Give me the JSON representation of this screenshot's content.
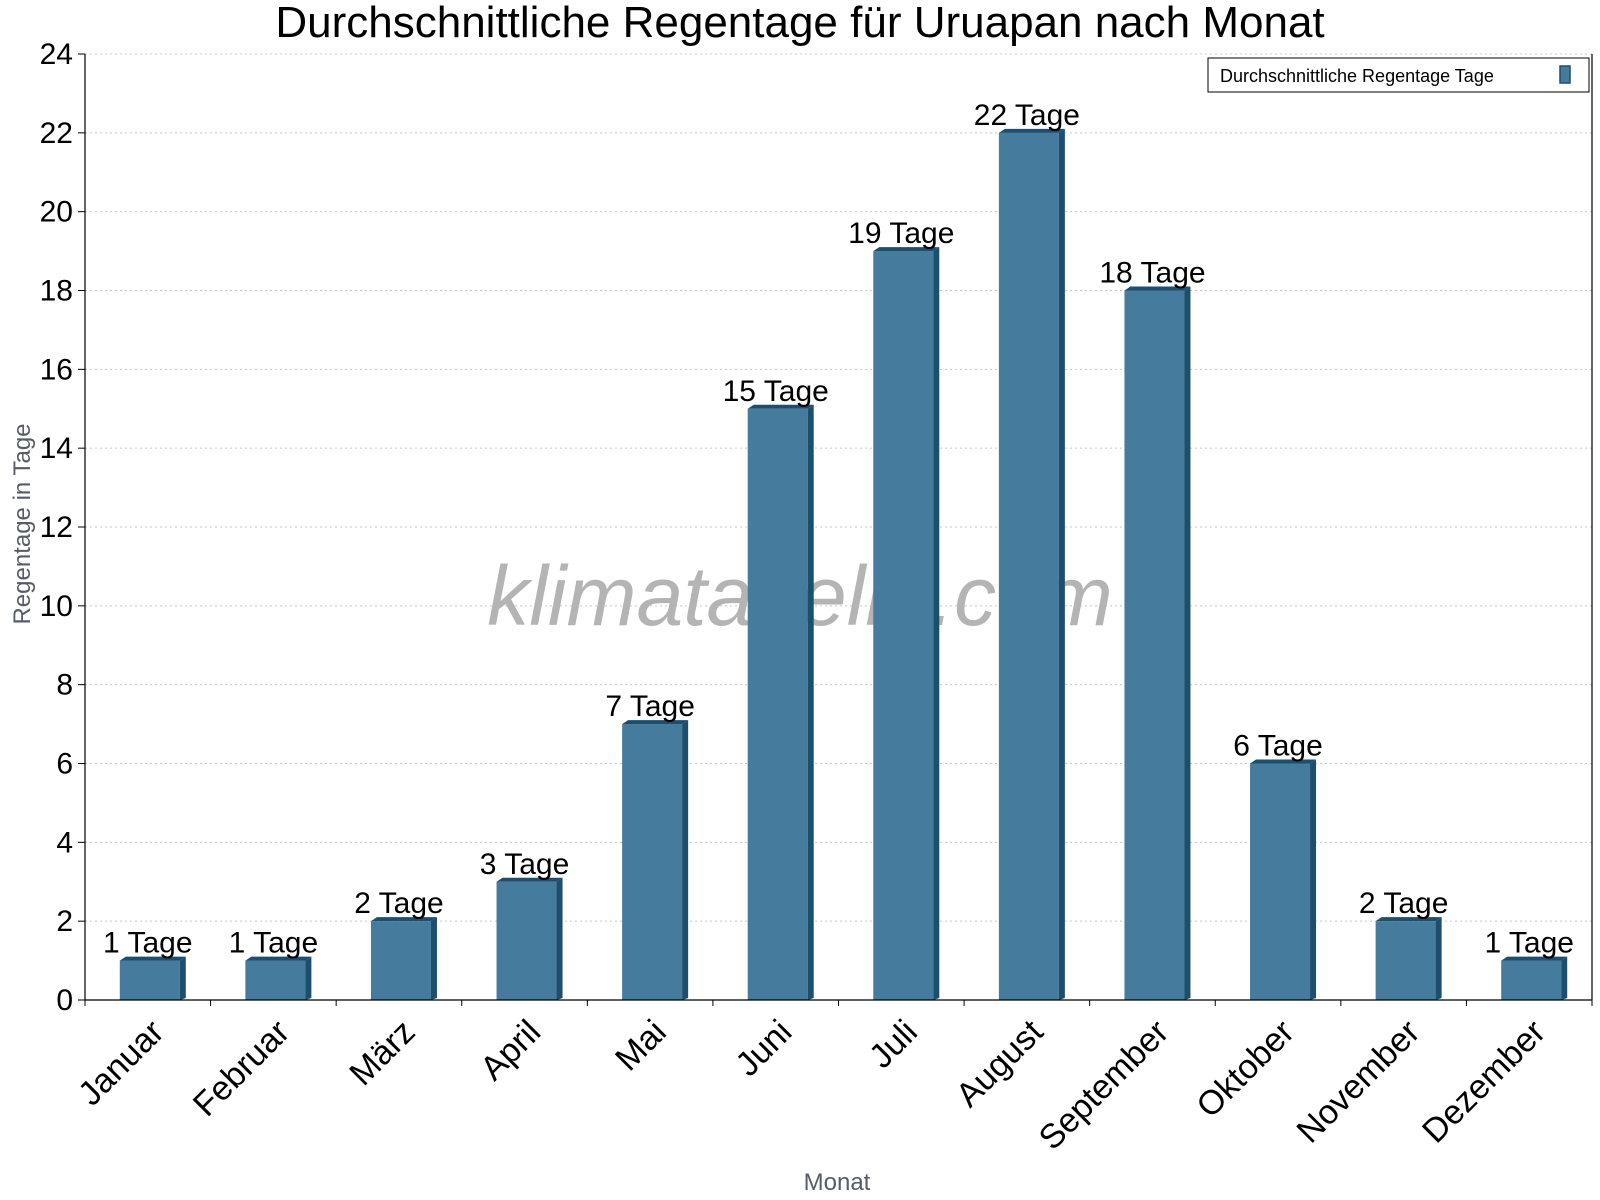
{
  "chart_data": {
    "type": "bar",
    "title": "Durchschnittliche Regentage für Uruapan nach Monat",
    "xlabel": "Monat",
    "ylabel": "Regentage in Tage",
    "categories": [
      "Januar",
      "Februar",
      "März",
      "April",
      "Mai",
      "Juni",
      "Juli",
      "August",
      "September",
      "Oktober",
      "November",
      "Dezember"
    ],
    "series": [
      {
        "name": "Durchschnittliche Regentage Tage",
        "values": [
          1,
          1,
          2,
          3,
          7,
          15,
          19,
          22,
          18,
          6,
          2,
          1
        ]
      }
    ],
    "data_labels": [
      "1 Tage",
      "1 Tage",
      "2 Tage",
      "3 Tage",
      "7 Tage",
      "15 Tage",
      "19 Tage",
      "22 Tage",
      "18 Tage",
      "6 Tage",
      "2 Tage",
      "1 Tage"
    ],
    "ylim": [
      0,
      24
    ],
    "yticks": [
      0,
      2,
      4,
      6,
      8,
      10,
      12,
      14,
      16,
      18,
      20,
      22,
      24
    ],
    "grid": true,
    "legend_position": "top-right",
    "watermark": "klimatabelle.com",
    "colors": {
      "bar_front": "#457b9d",
      "bar_side": "#1d4e6e",
      "bar_top": "#1d4e6e",
      "grid": "#c8c8c8"
    }
  }
}
